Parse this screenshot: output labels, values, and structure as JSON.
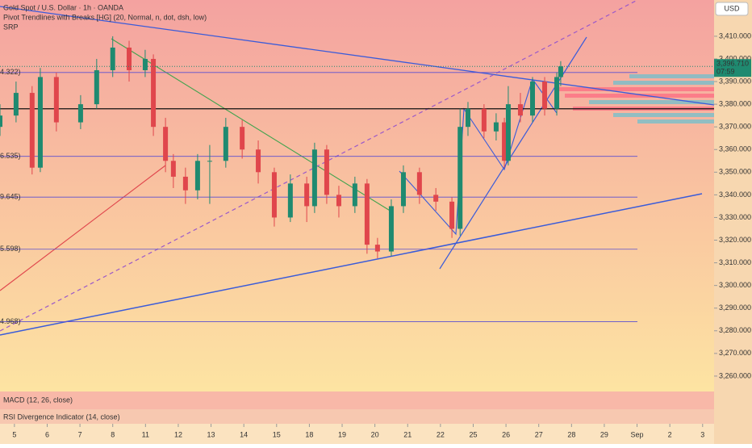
{
  "header": {
    "symbol": "Gold Spot / U.S. Dollar · 1h · OANDA",
    "indicator": "Pivot Trendlines with Breaks [HG] (20, Normal, n, dot, dsh, low)",
    "srp": "SRP",
    "currency": "USD"
  },
  "chart_data": {
    "type": "candlestick",
    "x": [
      -0.44,
      0.05,
      0.54,
      0.79,
      1.28,
      2.02,
      2.51,
      3.0,
      3.5,
      3.99,
      4.24,
      4.61,
      4.85,
      5.22,
      5.59,
      5.96,
      6.45,
      6.95,
      7.44,
      7.93,
      8.42,
      8.92,
      9.16,
      9.53,
      9.9,
      10.39,
      10.76,
      11.08,
      11.5,
      11.87,
      12.36,
      12.86,
      13.35,
      13.6,
      13.84,
      14.33,
      14.7,
      14.95,
      15.07,
      15.44,
      15.81,
      16.18,
      16.55,
      16.67
    ],
    "open": [
      3370,
      3375,
      3385,
      3352,
      3392,
      3372,
      3380,
      3395,
      3405,
      3395,
      3400,
      3370,
      3355,
      3348,
      3342,
      3355,
      3355,
      3370,
      3360,
      3350,
      3330,
      3345,
      3335,
      3360,
      3340,
      3335,
      3345,
      3318,
      3315,
      3335,
      3350,
      3340,
      3337,
      3325,
      3370,
      3378,
      3368,
      3372,
      3355,
      3380,
      3375,
      3390,
      3378,
      3392
    ],
    "high": [
      3380,
      3390,
      3388,
      3396,
      3394,
      3384,
      3400,
      3410,
      3408,
      3404,
      3402,
      3374,
      3358,
      3352,
      3358,
      3362,
      3374,
      3373,
      3364,
      3352,
      3349,
      3348,
      3363,
      3362,
      3344,
      3348,
      3347,
      3321,
      3338,
      3353,
      3352,
      3343,
      3339,
      3378,
      3381,
      3380,
      3376,
      3374,
      3388,
      3385,
      3392,
      3392,
      3394,
      3399
    ],
    "low": [
      3366,
      3372,
      3349,
      3350,
      3368,
      3369,
      3378,
      3392,
      3390,
      3392,
      3366,
      3350,
      3343,
      3336,
      3338,
      3336,
      3352,
      3356,
      3345,
      3326,
      3328,
      3328,
      3332,
      3336,
      3330,
      3332,
      3314,
      3312,
      3313,
      3332,
      3336,
      3333,
      3321,
      3322,
      3366,
      3365,
      3364,
      3352,
      3353,
      3372,
      3372,
      3375,
      3375,
      3388
    ],
    "close": [
      3375,
      3385,
      3352,
      3392,
      3372,
      3380,
      3395,
      3405,
      3395,
      3400,
      3370,
      3355,
      3348,
      3342,
      3355,
      3355,
      3370,
      3360,
      3350,
      3330,
      3345,
      3335,
      3360,
      3340,
      3335,
      3345,
      3318,
      3315,
      3335,
      3350,
      3340,
      3337,
      3325,
      3370,
      3378,
      3368,
      3372,
      3355,
      3380,
      3375,
      3390,
      3378,
      3392,
      3396.71
    ],
    "up_color": "#1f8a70",
    "down_color": "#e0464c",
    "xlim": [
      -0.44,
      21.35
    ],
    "xticks": [
      {
        "value": 0,
        "label": "5"
      },
      {
        "value": 1,
        "label": "6"
      },
      {
        "value": 2,
        "label": "7"
      },
      {
        "value": 3,
        "label": "8"
      },
      {
        "value": 4,
        "label": "11"
      },
      {
        "value": 5,
        "label": "12"
      },
      {
        "value": 6,
        "label": "13"
      },
      {
        "value": 7,
        "label": "14"
      },
      {
        "value": 8,
        "label": "15"
      },
      {
        "value": 9,
        "label": "18"
      },
      {
        "value": 10,
        "label": "19"
      },
      {
        "value": 11,
        "label": "20"
      },
      {
        "value": 12,
        "label": "21"
      },
      {
        "value": 13,
        "label": "22"
      },
      {
        "value": 14,
        "label": "25"
      },
      {
        "value": 15,
        "label": "26"
      },
      {
        "value": 16,
        "label": "27"
      },
      {
        "value": 17,
        "label": "28"
      },
      {
        "value": 18,
        "label": "29"
      },
      {
        "value": 19,
        "label": "Sep"
      },
      {
        "value": 20,
        "label": "2"
      },
      {
        "value": 21,
        "label": "3"
      }
    ],
    "ylim": [
      3253.2,
      3426
    ],
    "yticks": [
      {
        "value": 3260,
        "label": "3,260.000"
      },
      {
        "value": 3270,
        "label": "3,270.000"
      },
      {
        "value": 3280,
        "label": "3,280.000"
      },
      {
        "value": 3290,
        "label": "3,290.000"
      },
      {
        "value": 3300,
        "label": "3,300.000"
      },
      {
        "value": 3310,
        "label": "3,310.000"
      },
      {
        "value": 3320,
        "label": "3,320.000"
      },
      {
        "value": 3330,
        "label": "3,330.000"
      },
      {
        "value": 3340,
        "label": "3,340.000"
      },
      {
        "value": 3350,
        "label": "3,350.000"
      },
      {
        "value": 3360,
        "label": "3,360.000"
      },
      {
        "value": 3370,
        "label": "3,370.000"
      },
      {
        "value": 3380,
        "label": "3,380.000"
      },
      {
        "value": 3390,
        "label": "3,390.000"
      },
      {
        "value": 3400,
        "label": "3,400.000"
      },
      {
        "value": 3410,
        "label": "3,410.000"
      }
    ],
    "levels": [
      {
        "value": 3394,
        "label": "4.322)"
      },
      {
        "value": 3357,
        "label": "6.535)"
      },
      {
        "value": 3339,
        "label": "9.645)"
      },
      {
        "value": 3316,
        "label": "5.598)"
      },
      {
        "value": 3284,
        "label": "4.968)"
      }
    ],
    "key_level": 3378,
    "last_price": {
      "value": 3396.71,
      "label": "3,396.710",
      "countdown": "07:59"
    }
  },
  "panes": {
    "macd": "MACD (12, 26, close)",
    "rsi": "RSI Divergence Indicator (14, close)"
  }
}
